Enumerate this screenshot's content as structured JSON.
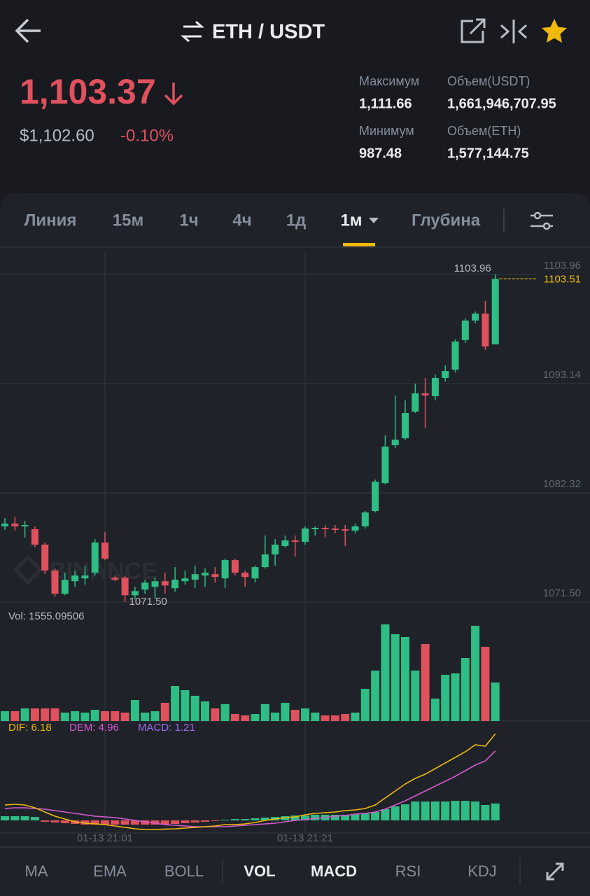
{
  "header": {
    "title": "ETH / USDT",
    "price": "1,103.37",
    "price_usd": "$1,102.60",
    "change": "-0.10%",
    "stats": [
      {
        "label": "Максимум",
        "value": "1,111.66"
      },
      {
        "label": "Объем(USDT)",
        "value": "1,661,946,707.95"
      },
      {
        "label": "Минимум",
        "value": "987.48"
      },
      {
        "label": "Объем(ETH)",
        "value": "1,577,144.75"
      }
    ]
  },
  "tabs": [
    "Линия",
    "15м",
    "1ч",
    "4ч",
    "1д",
    "1м",
    "Глубина"
  ],
  "indicator_tabs": [
    "MA",
    "EMA",
    "BOLL",
    "VOL",
    "MACD",
    "RSI",
    "KDJ"
  ],
  "chart_data": {
    "type": "candlestick",
    "watermark": "BINANCE",
    "up_color": "#2ebd85",
    "down_color": "#e0515e",
    "categories": [
      null,
      null,
      null,
      null,
      null,
      null,
      null,
      null,
      null,
      null,
      "01-13 21:01",
      null,
      null,
      null,
      null,
      null,
      null,
      null,
      null,
      null,
      null,
      null,
      null,
      null,
      null,
      null,
      null,
      null,
      null,
      null,
      "01-13 21:21",
      null,
      null,
      null,
      null,
      null,
      null,
      null,
      null,
      null,
      null,
      null,
      null,
      null,
      null,
      null,
      null,
      null,
      null,
      null
    ],
    "open": [
      1078.99,
      1079.27,
      1078.99,
      1078.71,
      1077.18,
      1074.61,
      1072.31,
      1073.56,
      1073.84,
      1074.4,
      1077.39,
      1073.91,
      1073.91,
      1072.17,
      1072.73,
      1073.0,
      1073.56,
      1072.87,
      1073.56,
      1073.7,
      1074.12,
      1074.26,
      1073.84,
      1075.65,
      1074.4,
      1073.84,
      1074.96,
      1076.21,
      1077.04,
      1077.6,
      1077.46,
      1078.71,
      1078.85,
      1078.78,
      1078.71,
      1078.57,
      1078.99,
      1080.51,
      1083.28,
      1087.03,
      1087.72,
      1090.36,
      1092.17,
      1091.89,
      1093.69,
      1094.52,
      1097.44,
      1099.38,
      1100.07,
      1097.02
    ],
    "high": [
      1079.82,
      1079.96,
      1079.54,
      1078.99,
      1077.39,
      1074.82,
      1074.4,
      1074.61,
      1075.1,
      1077.74,
      1078.43,
      1074.12,
      1074.12,
      1073.0,
      1073.7,
      1073.91,
      1074.4,
      1074.96,
      1074.61,
      1075.1,
      1074.82,
      1074.96,
      1075.79,
      1075.79,
      1074.61,
      1075.1,
      1078.08,
      1077.74,
      1078.08,
      1078.08,
      1078.99,
      1078.99,
      1079.13,
      1079.13,
      1079.13,
      1079.27,
      1080.51,
      1083.63,
      1088.0,
      1091.96,
      1091.47,
      1093.13,
      1093.69,
      1094.04,
      1094.94,
      1097.51,
      1099.59,
      1100.28,
      1101.32,
      1103.96
    ],
    "low": [
      1078.64,
      1078.57,
      1077.88,
      1076.9,
      1074.26,
      1072.03,
      1072.17,
      1073.0,
      1073.21,
      1074.12,
      1075.65,
      1073.56,
      1071.5,
      1071.75,
      1072.31,
      1071.82,
      1072.31,
      1072.52,
      1073.21,
      1072.87,
      1073.0,
      1073.42,
      1072.87,
      1074.12,
      1073.0,
      1073.42,
      1074.82,
      1075.1,
      1076.9,
      1076.0,
      1077.18,
      1078.08,
      1077.88,
      1078.29,
      1077.04,
      1078.29,
      1078.78,
      1080.37,
      1083.14,
      1086.75,
      1087.58,
      1090.22,
      1088.7,
      1091.47,
      1093.34,
      1094.24,
      1097.16,
      1099.1,
      1096.47,
      1097.02
    ],
    "close": [
      1079.27,
      1078.99,
      1079.13,
      1077.18,
      1074.61,
      1072.31,
      1073.7,
      1074.12,
      1074.12,
      1077.39,
      1075.79,
      1073.7,
      1072.17,
      1072.59,
      1073.42,
      1073.56,
      1073.14,
      1073.7,
      1073.84,
      1074.26,
      1074.4,
      1073.98,
      1075.65,
      1074.4,
      1073.98,
      1074.96,
      1076.21,
      1077.18,
      1077.6,
      1077.46,
      1078.78,
      1078.85,
      1078.71,
      1078.64,
      1078.57,
      1078.99,
      1080.37,
      1083.42,
      1086.89,
      1087.58,
      1090.22,
      1092.17,
      1091.96,
      1093.69,
      1094.38,
      1097.3,
      1099.38,
      1100.07,
      1096.81,
      1103.51
    ],
    "ylim": [
      1071.5,
      1106.17
    ],
    "yticks": [
      {
        "value": 1071.5,
        "label": "1071.50"
      },
      1082.32,
      1093.14,
      1103.96
    ],
    "high_label": "1103.96",
    "low_label": "1071.50",
    "volume": [
      396,
      396,
      509,
      509,
      509,
      509,
      340,
      396,
      340,
      453,
      396,
      396,
      340,
      849,
      340,
      396,
      736,
      1415,
      1245,
      1019,
      792,
      509,
      679,
      283,
      226,
      283,
      679,
      340,
      736,
      453,
      509,
      340,
      226,
      226,
      283,
      340,
      1302,
      2038,
      3905,
      3509,
      3396,
      2038,
      3113,
      906,
      1868,
      1924,
      2547,
      3849,
      3000,
      1555.09506
    ],
    "vol_label": "Vol: 1555.09506",
    "macd": {
      "dif_label": "DIF: 6.18",
      "dea_label": "DEM: 4.96",
      "macd_label": "MACD: 1.21",
      "dif_color": "#f0b90b",
      "dea_color": "#d65ad1",
      "label_color": "#9b6cf0",
      "dif": [
        1.1,
        1.15,
        1.1,
        0.9,
        0.6,
        0.3,
        0.1,
        -0.1,
        -0.2,
        -0.25,
        -0.3,
        -0.4,
        -0.5,
        -0.6,
        -0.65,
        -0.65,
        -0.62,
        -0.6,
        -0.55,
        -0.5,
        -0.45,
        -0.4,
        -0.3,
        -0.3,
        -0.25,
        -0.15,
        0,
        0.1,
        0.2,
        0.25,
        0.4,
        0.5,
        0.55,
        0.6,
        0.7,
        0.75,
        0.85,
        1.1,
        1.6,
        2.1,
        2.6,
        3.0,
        3.3,
        3.7,
        4.1,
        4.5,
        4.9,
        5.4,
        5.3,
        6.18
      ],
      "dea": [
        0.85,
        0.9,
        0.9,
        0.85,
        0.8,
        0.7,
        0.6,
        0.5,
        0.4,
        0.3,
        0.25,
        0.2,
        0.1,
        0,
        -0.1,
        -0.2,
        -0.3,
        -0.35,
        -0.4,
        -0.45,
        -0.45,
        -0.45,
        -0.45,
        -0.4,
        -0.35,
        -0.3,
        -0.25,
        -0.2,
        -0.1,
        0,
        0.05,
        0.15,
        0.2,
        0.3,
        0.35,
        0.45,
        0.5,
        0.6,
        0.8,
        1.1,
        1.4,
        1.75,
        2.1,
        2.45,
        2.8,
        3.15,
        3.55,
        3.95,
        4.25,
        4.96
      ],
      "hist": [
        0.3,
        0.3,
        0.3,
        0.25,
        -0.1,
        -0.15,
        -0.2,
        -0.25,
        -0.3,
        -0.3,
        -0.3,
        -0.3,
        -0.3,
        -0.3,
        -0.3,
        -0.3,
        -0.3,
        -0.25,
        -0.2,
        -0.15,
        -0.1,
        -0.05,
        0.05,
        0.1,
        0.1,
        0.15,
        0.2,
        0.25,
        0.3,
        0.35,
        0.35,
        0.4,
        0.4,
        0.4,
        0.4,
        0.45,
        0.5,
        0.6,
        0.8,
        1.0,
        1.15,
        1.35,
        1.35,
        1.35,
        1.35,
        1.4,
        1.4,
        1.35,
        1.1,
        1.21
      ]
    }
  }
}
